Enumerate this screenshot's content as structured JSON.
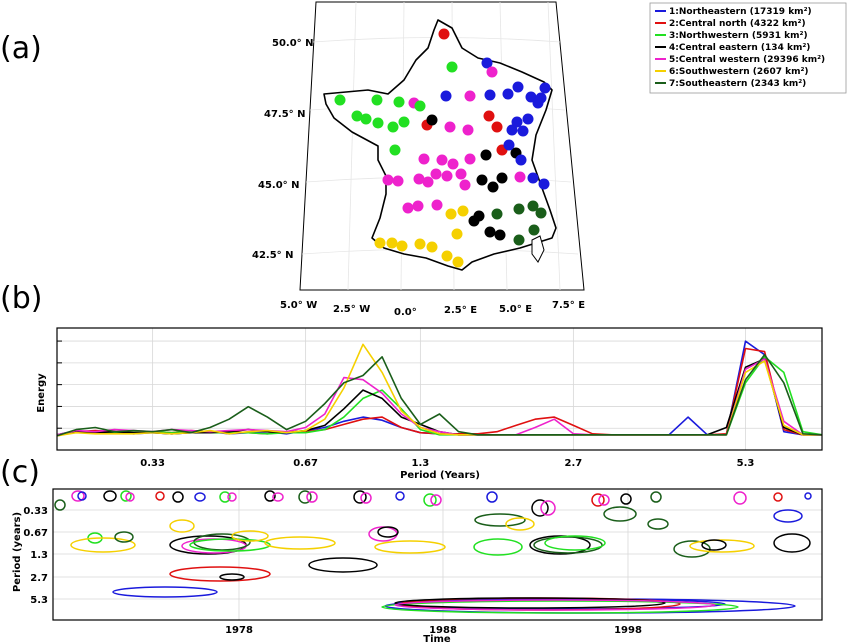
{
  "panels": {
    "a": {
      "label": "(a)"
    },
    "b": {
      "label": "(b)"
    },
    "c": {
      "label": "(c)"
    }
  },
  "map": {
    "lat_labels": [
      "50.0° N",
      "47.5° N",
      "45.0° N",
      "42.5° N"
    ],
    "lon_labels": [
      "5.0° W",
      "2.5° W",
      "0.0°",
      "2.5° E",
      "5.0° E",
      "7.5° E"
    ]
  },
  "legend": {
    "entries": [
      {
        "text": "1:Northeastern (17319 km²)",
        "color": "#1a1adc"
      },
      {
        "text": "2:Central north (4322 km²)",
        "color": "#e01010"
      },
      {
        "text": "3:Northwestern (5931 km²)",
        "color": "#22e022"
      },
      {
        "text": "4:Central eastern (134 km²)",
        "color": "#000000"
      },
      {
        "text": "5:Central western (29396 km²)",
        "color": "#ee22cc"
      },
      {
        "text": "6:Southwestern (2607 km²)",
        "color": "#f5d000"
      },
      {
        "text": "7:Southeastern (2343 km²)",
        "color": "#1a5e1a"
      }
    ]
  },
  "chart_data": [
    {
      "type": "line",
      "panel": "b",
      "xlabel": "Period (Years)",
      "ylabel": "Energy",
      "xticks": [
        "0.33",
        "0.67",
        "1.3",
        "2.7",
        "5.3"
      ],
      "grid": true,
      "x_index": [
        0,
        1,
        2,
        3,
        4,
        5,
        6,
        7,
        8,
        9,
        10,
        11,
        12,
        13,
        14,
        15,
        16,
        17,
        18,
        19,
        20,
        21,
        22,
        23,
        24,
        25,
        26,
        27,
        28,
        29,
        30,
        31,
        32,
        33,
        34,
        35,
        36,
        37,
        38,
        39,
        40
      ],
      "series": [
        {
          "color": "#1a1adc",
          "values": [
            0.05,
            0.09,
            0.07,
            0.08,
            0.06,
            0.07,
            0.06,
            0.07,
            0.08,
            0.06,
            0.07,
            0.08,
            0.06,
            0.09,
            0.12,
            0.18,
            0.22,
            0.19,
            0.12,
            0.07,
            0.06,
            0.05,
            0.05,
            0.05,
            0.05,
            0.05,
            0.05,
            0.05,
            0.05,
            0.05,
            0.05,
            0.05,
            0.05,
            0.22,
            0.05,
            0.05,
            0.95,
            0.82,
            0.08,
            0.05,
            0.05
          ]
        },
        {
          "color": "#e01010",
          "values": [
            0.04,
            0.08,
            0.09,
            0.08,
            0.07,
            0.08,
            0.07,
            0.09,
            0.08,
            0.08,
            0.07,
            0.06,
            0.08,
            0.08,
            0.1,
            0.15,
            0.2,
            0.22,
            0.12,
            0.07,
            0.06,
            0.06,
            0.06,
            0.08,
            0.14,
            0.2,
            0.22,
            0.14,
            0.06,
            0.05,
            0.05,
            0.05,
            0.05,
            0.05,
            0.05,
            0.06,
            0.88,
            0.85,
            0.1,
            0.05,
            0.05
          ]
        },
        {
          "color": "#22e022",
          "values": [
            0.05,
            0.08,
            0.07,
            0.07,
            0.07,
            0.08,
            0.07,
            0.08,
            0.07,
            0.07,
            0.07,
            0.06,
            0.07,
            0.07,
            0.1,
            0.22,
            0.4,
            0.48,
            0.3,
            0.1,
            0.05,
            0.05,
            0.05,
            0.05,
            0.05,
            0.05,
            0.05,
            0.05,
            0.05,
            0.05,
            0.05,
            0.05,
            0.05,
            0.05,
            0.05,
            0.05,
            0.55,
            0.8,
            0.65,
            0.08,
            0.05
          ]
        },
        {
          "color": "#000000",
          "values": [
            0.05,
            0.08,
            0.07,
            0.08,
            0.07,
            0.07,
            0.06,
            0.07,
            0.07,
            0.08,
            0.1,
            0.08,
            0.07,
            0.09,
            0.14,
            0.3,
            0.48,
            0.4,
            0.22,
            0.15,
            0.08,
            0.05,
            0.05,
            0.05,
            0.05,
            0.05,
            0.05,
            0.05,
            0.05,
            0.05,
            0.05,
            0.05,
            0.05,
            0.05,
            0.05,
            0.12,
            0.7,
            0.78,
            0.12,
            0.05,
            0.05
          ]
        },
        {
          "color": "#ee22cc",
          "values": [
            0.05,
            0.09,
            0.08,
            0.1,
            0.09,
            0.08,
            0.1,
            0.09,
            0.08,
            0.09,
            0.1,
            0.09,
            0.08,
            0.12,
            0.25,
            0.6,
            0.58,
            0.45,
            0.25,
            0.12,
            0.08,
            0.05,
            0.05,
            0.05,
            0.05,
            0.12,
            0.2,
            0.06,
            0.05,
            0.05,
            0.05,
            0.05,
            0.05,
            0.05,
            0.05,
            0.05,
            0.68,
            0.78,
            0.18,
            0.05,
            0.05
          ]
        },
        {
          "color": "#f5d000",
          "values": [
            0.04,
            0.07,
            0.06,
            0.06,
            0.06,
            0.07,
            0.06,
            0.07,
            0.09,
            0.06,
            0.08,
            0.09,
            0.07,
            0.09,
            0.2,
            0.5,
            0.92,
            0.65,
            0.28,
            0.12,
            0.06,
            0.05,
            0.05,
            0.05,
            0.05,
            0.05,
            0.05,
            0.05,
            0.05,
            0.05,
            0.05,
            0.05,
            0.05,
            0.05,
            0.05,
            0.05,
            0.65,
            0.76,
            0.14,
            0.05,
            0.05
          ]
        },
        {
          "color": "#1a5e1a",
          "values": [
            0.04,
            0.1,
            0.12,
            0.08,
            0.09,
            0.08,
            0.1,
            0.07,
            0.12,
            0.2,
            0.32,
            0.22,
            0.1,
            0.18,
            0.35,
            0.55,
            0.62,
            0.8,
            0.4,
            0.15,
            0.25,
            0.08,
            0.05,
            0.05,
            0.05,
            0.05,
            0.05,
            0.05,
            0.05,
            0.05,
            0.05,
            0.05,
            0.05,
            0.05,
            0.05,
            0.05,
            0.58,
            0.82,
            0.55,
            0.06,
            0.05
          ]
        }
      ]
    },
    {
      "type": "contour",
      "panel": "c",
      "xlabel": "Time",
      "ylabel": "Period (years)",
      "xticks": [
        "1978",
        "1988",
        "1998"
      ],
      "yticks": [
        "0.33",
        "0.67",
        "1.3",
        "2.7",
        "5.3"
      ],
      "grid": true
    }
  ]
}
